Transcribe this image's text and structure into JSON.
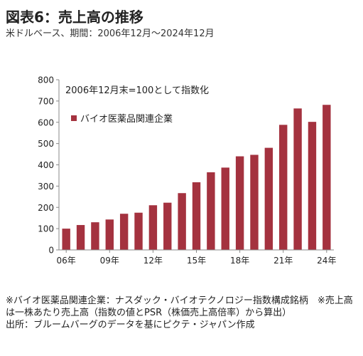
{
  "figure": {
    "title": "図表6：売上高の推移",
    "subtitle": "米ドルベース、期間：2006年12月～2024年12月"
  },
  "chart_data": {
    "type": "bar",
    "annotation": "2006年12月末=100として指数化",
    "ylim": [
      0,
      800
    ],
    "yticks": [
      0,
      100,
      200,
      300,
      400,
      500,
      600,
      700,
      800
    ],
    "x_tick_labels": [
      "06年",
      "09年",
      "12年",
      "15年",
      "18年",
      "21年",
      "24年"
    ],
    "x_tick_indices": [
      0,
      3,
      6,
      9,
      12,
      15,
      18
    ],
    "legend_position": "top-left",
    "grid": false,
    "colors": {
      "bar": "#A4323F",
      "axis": "#888888"
    },
    "series": [
      {
        "name": "バイオ医薬品関連企業",
        "values": [
          100,
          117,
          130,
          143,
          170,
          175,
          210,
          222,
          267,
          318,
          365,
          387,
          440,
          447,
          480,
          588,
          665,
          602,
          682
        ]
      }
    ]
  },
  "footnotes": [
    "※バイオ医薬品関連企業：ナスダック・バイオテクノロジー指数構成銘柄　※売上高は一株あたり売上高（指数の値とPSR（株価売上高倍率）から算出）",
    "出所：ブルームバーグのデータを基にピクテ・ジャパン作成"
  ]
}
